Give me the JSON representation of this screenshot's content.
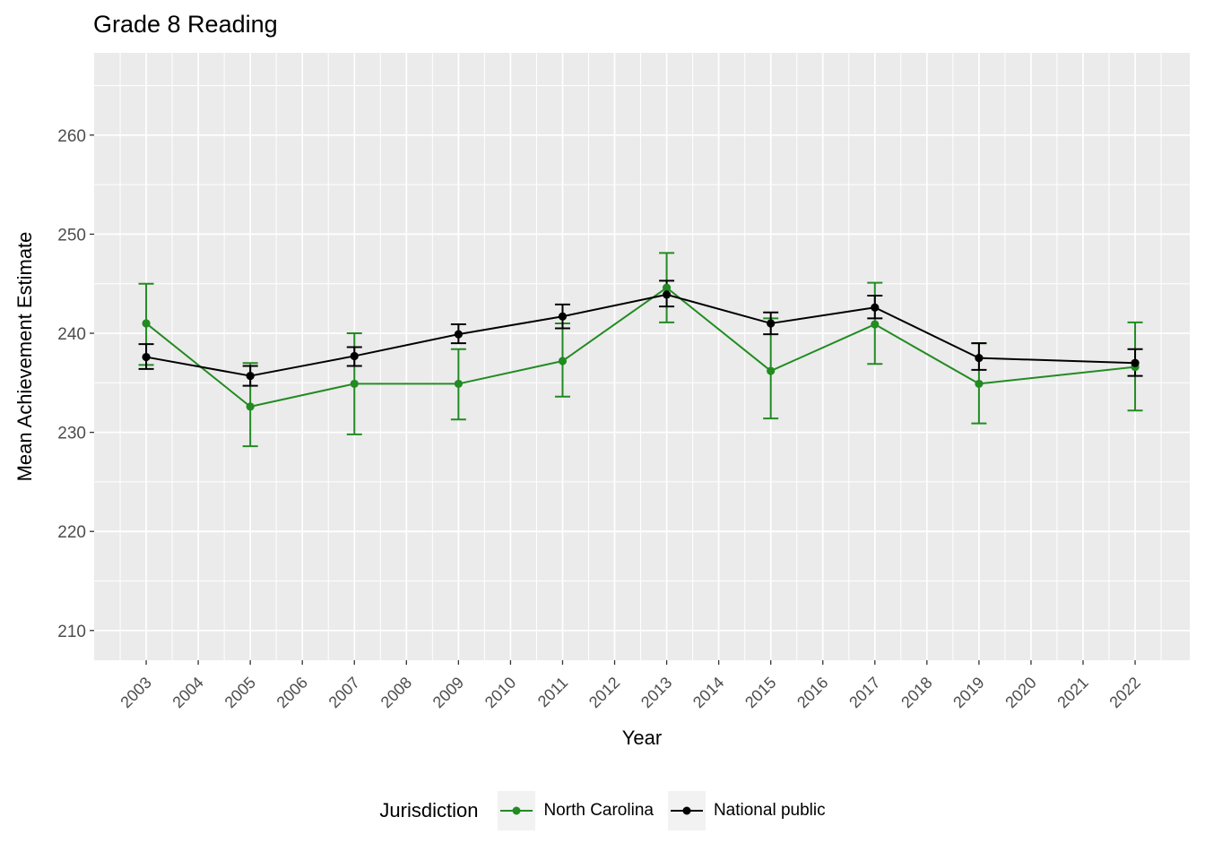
{
  "title": "Grade 8 Reading",
  "axes": {
    "x_label": "Year",
    "y_label": "Mean Achievement Estimate"
  },
  "legend": {
    "title": "Jurisdiction",
    "items": [
      {
        "label": "North Carolina",
        "color": "#228B22"
      },
      {
        "label": "National public",
        "color": "#000000"
      }
    ]
  },
  "colors": {
    "panel_bg": "#EBEBEB",
    "grid_major": "#FFFFFF",
    "grid_minor": "#FFFFFF",
    "axis_text": "#4D4D4D",
    "tick_mark": "#333333",
    "background": "#FFFFFF",
    "legend_key_bg": "#F2F2F2"
  },
  "chart_data": {
    "type": "line",
    "title": "Grade 8 Reading",
    "xlabel": "Year",
    "ylabel": "Mean Achievement Estimate",
    "grid": true,
    "legend_position": "bottom",
    "xlim": [
      2002,
      2023.05
    ],
    "ylim": [
      207,
      268.3
    ],
    "x_ticks": [
      2003,
      2004,
      2005,
      2006,
      2007,
      2008,
      2009,
      2010,
      2011,
      2012,
      2013,
      2014,
      2015,
      2016,
      2017,
      2018,
      2019,
      2020,
      2021,
      2022
    ],
    "y_ticks": [
      210,
      220,
      230,
      240,
      250,
      260
    ],
    "x": [
      2003,
      2005,
      2007,
      2009,
      2011,
      2013,
      2015,
      2017,
      2019,
      2022
    ],
    "series": [
      {
        "name": "North Carolina",
        "color": "#228B22",
        "values": [
          241.0,
          232.6,
          234.9,
          234.9,
          237.2,
          244.6,
          236.2,
          240.9,
          234.9,
          236.6
        ],
        "error_low": [
          236.8,
          228.6,
          229.8,
          231.3,
          233.6,
          241.1,
          231.4,
          236.9,
          230.9,
          232.2
        ],
        "error_high": [
          245.0,
          237.0,
          240.0,
          238.4,
          241.0,
          248.1,
          241.5,
          245.1,
          239.0,
          241.1
        ]
      },
      {
        "name": "National public",
        "color": "#000000",
        "values": [
          237.6,
          235.7,
          237.7,
          239.9,
          241.7,
          243.9,
          241.0,
          242.6,
          237.5,
          237.0
        ],
        "error_low": [
          236.4,
          234.7,
          236.7,
          239.0,
          240.5,
          242.7,
          239.9,
          241.5,
          236.3,
          235.7
        ],
        "error_high": [
          238.9,
          236.7,
          238.6,
          240.9,
          242.9,
          245.3,
          242.1,
          243.8,
          239.0,
          238.4
        ]
      }
    ]
  }
}
